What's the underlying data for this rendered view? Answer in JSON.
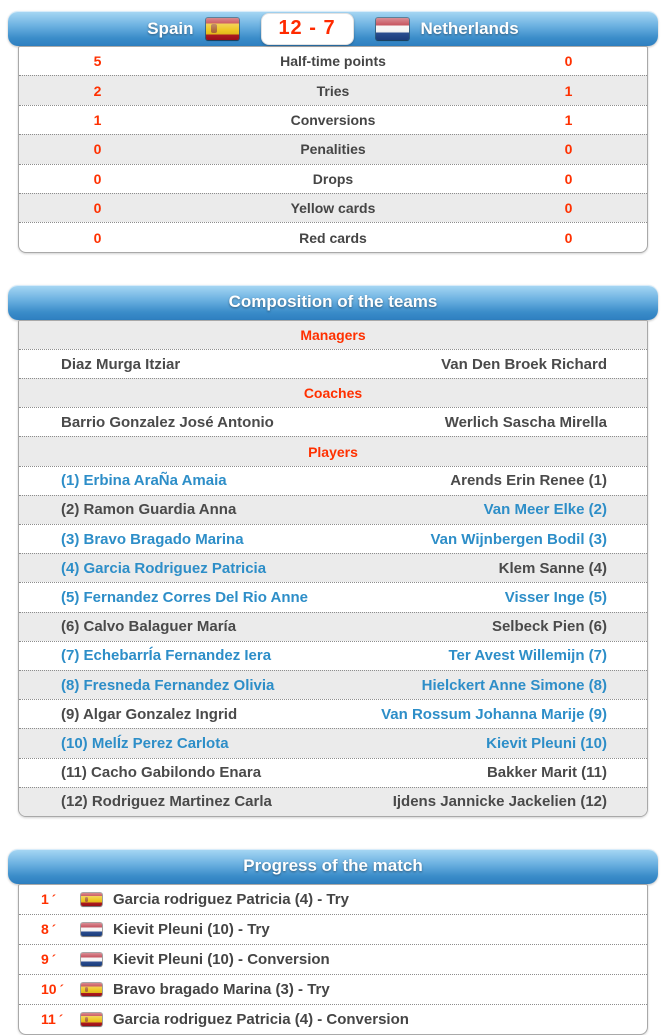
{
  "scoreboard": {
    "home_team": "Spain",
    "away_team": "Netherlands",
    "score": "12 - 7"
  },
  "stats": {
    "rows": [
      {
        "home": "5",
        "label": "Half-time points",
        "away": "0"
      },
      {
        "home": "2",
        "label": "Tries",
        "away": "1"
      },
      {
        "home": "1",
        "label": "Conversions",
        "away": "1"
      },
      {
        "home": "0",
        "label": "Penalities",
        "away": "0"
      },
      {
        "home": "0",
        "label": "Drops",
        "away": "0"
      },
      {
        "home": "0",
        "label": "Yellow cards",
        "away": "0"
      },
      {
        "home": "0",
        "label": "Red cards",
        "away": "0"
      }
    ]
  },
  "composition": {
    "title": "Composition of the teams",
    "rows": [
      {
        "type": "header",
        "label": "Managers"
      },
      {
        "type": "pair",
        "home": "Diaz Murga Itziar",
        "away": "Van Den Broek Richard",
        "home_color": "dark",
        "away_color": "dark"
      },
      {
        "type": "header",
        "label": "Coaches"
      },
      {
        "type": "pair",
        "home": "Barrio Gonzalez José Antonio",
        "away": "Werlich Sascha Mirella",
        "home_color": "dark",
        "away_color": "dark"
      },
      {
        "type": "header",
        "label": "Players"
      },
      {
        "type": "pair",
        "home": "(1) Erbina AraÑa Amaia",
        "away": "Arends Erin Renee (1)",
        "home_color": "blue",
        "away_color": "dark"
      },
      {
        "type": "pair",
        "home": "(2) Ramon Guardia Anna",
        "away": "Van Meer Elke (2)",
        "home_color": "dark",
        "away_color": "blue"
      },
      {
        "type": "pair",
        "home": "(3) Bravo Bragado Marina",
        "away": "Van Wijnbergen Bodil (3)",
        "home_color": "blue",
        "away_color": "blue"
      },
      {
        "type": "pair",
        "home": "(4) Garcia Rodriguez Patricia",
        "away": "Klem Sanne (4)",
        "home_color": "blue",
        "away_color": "dark"
      },
      {
        "type": "pair",
        "home": "(5) Fernandez Corres Del Rio Anne",
        "away": "Visser Inge (5)",
        "home_color": "blue",
        "away_color": "blue"
      },
      {
        "type": "pair",
        "home": "(6) Calvo Balaguer María",
        "away": "Selbeck Pien (6)",
        "home_color": "dark",
        "away_color": "dark"
      },
      {
        "type": "pair",
        "home": "(7) EchebarrÍa Fernandez Iera",
        "away": "Ter Avest Willemijn (7)",
        "home_color": "blue",
        "away_color": "blue"
      },
      {
        "type": "pair",
        "home": "(8) Fresneda Fernandez Olivia",
        "away": "Hielckert Anne Simone (8)",
        "home_color": "blue",
        "away_color": "blue"
      },
      {
        "type": "pair",
        "home": "(9) Algar Gonzalez Ingrid",
        "away": "Van Rossum Johanna Marije (9)",
        "home_color": "dark",
        "away_color": "blue"
      },
      {
        "type": "pair",
        "home": "(10) MelÍz Perez Carlota",
        "away": "Kievit Pleuni (10)",
        "home_color": "blue",
        "away_color": "blue"
      },
      {
        "type": "pair",
        "home": "(11) Cacho Gabilondo Enara",
        "away": "Bakker Marit (11)",
        "home_color": "dark",
        "away_color": "dark"
      },
      {
        "type": "pair",
        "home": "(12) Rodriguez Martinez Carla",
        "away": "Ijdens Jannicke Jackelien (12)",
        "home_color": "dark",
        "away_color": "dark"
      }
    ]
  },
  "progress": {
    "title": "Progress of the match",
    "minute_suffix": "´",
    "events": [
      {
        "minute": "1",
        "team": "spain",
        "text": "Garcia rodriguez Patricia (4) - Try"
      },
      {
        "minute": "8",
        "team": "netherlands",
        "text": "Kievit Pleuni (10) - Try"
      },
      {
        "minute": "9",
        "team": "netherlands",
        "text": "Kievit Pleuni (10) - Conversion"
      },
      {
        "minute": "10",
        "team": "spain",
        "text": "Bravo bragado Marina (3) - Try"
      },
      {
        "minute": "11",
        "team": "spain",
        "text": "Garcia rodriguez Patricia (4) - Conversion"
      }
    ]
  },
  "colors": {
    "header_blue_top": "#a9d8f4",
    "header_blue_bottom": "#2e7fc0",
    "accent_red": "#ff3000",
    "score_red": "#ff2a00",
    "link_blue": "#2d8ec8",
    "dark_text": "#4a4a4a",
    "row_alt_gray": "#ebebeb"
  }
}
